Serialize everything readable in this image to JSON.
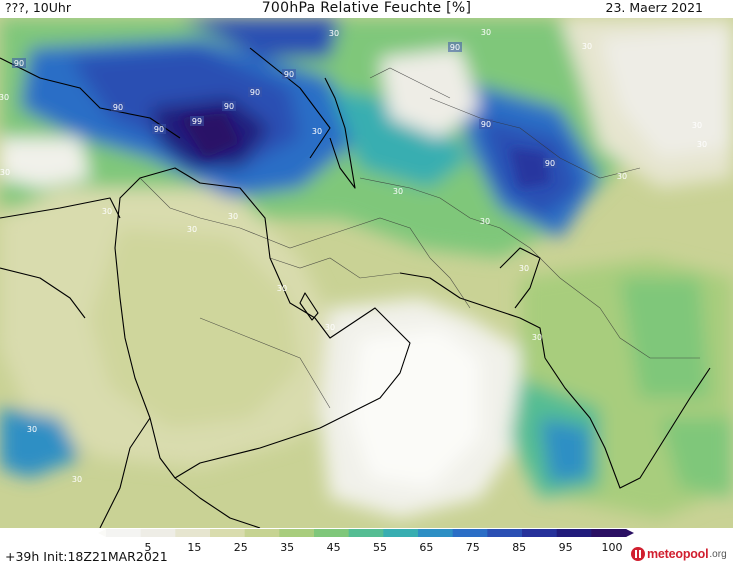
{
  "header": {
    "left": "???, 10Uhr",
    "title": "700hPa Relative Feuchte [%]",
    "date": "23. Maerz 2021"
  },
  "footer": {
    "run": "+39h Init:18Z21MAR2021",
    "logo_name": "meteopool",
    "logo_tld": ".org"
  },
  "colorscale": {
    "tick_labels": [
      "5",
      "15",
      "25",
      "35",
      "45",
      "55",
      "65",
      "75",
      "85",
      "95",
      "100"
    ],
    "colors": [
      "#f4f4f2",
      "#eeede6",
      "#e6e5cf",
      "#d9dcae",
      "#c6d392",
      "#a8cd7d",
      "#7fc77a",
      "#55bd93",
      "#38aeb1",
      "#2e8fc4",
      "#2b6ec6",
      "#2a4fb3",
      "#26319a",
      "#211b7b",
      "#2a0f63"
    ]
  },
  "contour_labels": [
    "90",
    "90",
    "90",
    "90",
    "90",
    "90",
    "90",
    "99",
    "90",
    "90",
    "90",
    "30",
    "30",
    "30",
    "30",
    "30",
    "30",
    "30",
    "30",
    "30",
    "30",
    "30",
    "30",
    "30",
    "30",
    "30",
    "30",
    "30",
    "30",
    "30",
    "30"
  ]
}
